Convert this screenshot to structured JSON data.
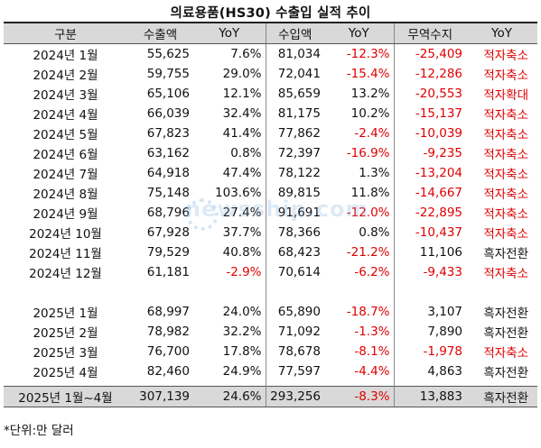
{
  "title": "의료용품(HS30) 수출입 실적 추이",
  "headers": [
    "구분",
    "수출액",
    "YoY",
    "수입액",
    "YoY",
    "무역수지",
    "YoY"
  ],
  "rows": [
    {
      "period": "2024년 1월",
      "export": "55,625",
      "export_yoy": "7.6%",
      "import": "81,034",
      "import_yoy": "-12.3%",
      "balance": "-25,409",
      "status": "적자축소"
    },
    {
      "period": "2024년 2월",
      "export": "59,755",
      "export_yoy": "29.0%",
      "import": "72,041",
      "import_yoy": "-15.4%",
      "balance": "-12,286",
      "status": "적자축소"
    },
    {
      "period": "2024년 3월",
      "export": "65,106",
      "export_yoy": "12.1%",
      "import": "85,659",
      "import_yoy": "13.2%",
      "balance": "-20,553",
      "status": "적자확대"
    },
    {
      "period": "2024년 4월",
      "export": "66,039",
      "export_yoy": "32.4%",
      "import": "81,175",
      "import_yoy": "10.2%",
      "balance": "-15,137",
      "status": "적자축소"
    },
    {
      "period": "2024년 5월",
      "export": "67,823",
      "export_yoy": "41.4%",
      "import": "77,862",
      "import_yoy": "-2.4%",
      "balance": "-10,039",
      "status": "적자축소"
    },
    {
      "period": "2024년 6월",
      "export": "63,162",
      "export_yoy": "0.8%",
      "import": "72,397",
      "import_yoy": "-16.9%",
      "balance": "-9,235",
      "status": "적자축소"
    },
    {
      "period": "2024년 7월",
      "export": "64,918",
      "export_yoy": "47.4%",
      "import": "78,122",
      "import_yoy": "1.3%",
      "balance": "-13,204",
      "status": "적자축소"
    },
    {
      "period": "2024년 8월",
      "export": "75,148",
      "export_yoy": "103.6%",
      "import": "89,815",
      "import_yoy": "11.8%",
      "balance": "-14,667",
      "status": "적자축소"
    },
    {
      "period": "2024년 9월",
      "export": "68,796",
      "export_yoy": "27.4%",
      "import": "91,691",
      "import_yoy": "-12.0%",
      "balance": "-22,895",
      "status": "적자축소"
    },
    {
      "period": "2024년 10월",
      "export": "67,928",
      "export_yoy": "37.7%",
      "import": "78,366",
      "import_yoy": "0.8%",
      "balance": "-10,437",
      "status": "적자축소"
    },
    {
      "period": "2024년 11월",
      "export": "79,529",
      "export_yoy": "40.8%",
      "import": "68,423",
      "import_yoy": "-21.2%",
      "balance": "11,106",
      "status": "흑자전환"
    },
    {
      "period": "2024년 12월",
      "export": "61,181",
      "export_yoy": "-2.9%",
      "import": "70,614",
      "import_yoy": "-6.2%",
      "balance": "-9,433",
      "status": "적자축소"
    },
    {
      "spacer": true
    },
    {
      "period": "2025년 1월",
      "export": "68,997",
      "export_yoy": "24.0%",
      "import": "65,890",
      "import_yoy": "-18.7%",
      "balance": "3,107",
      "status": "흑자전환"
    },
    {
      "period": "2025년 2월",
      "export": "78,982",
      "export_yoy": "32.2%",
      "import": "71,092",
      "import_yoy": "-1.3%",
      "balance": "7,890",
      "status": "흑자전환"
    },
    {
      "period": "2025년 3월",
      "export": "76,700",
      "export_yoy": "17.8%",
      "import": "78,678",
      "import_yoy": "-8.1%",
      "balance": "-1,978",
      "status": "적자축소"
    },
    {
      "period": "2025년 4월",
      "export": "82,460",
      "export_yoy": "24.9%",
      "import": "77,597",
      "import_yoy": "-4.4%",
      "balance": "4,863",
      "status": "흑자전환"
    }
  ],
  "total": {
    "period": "2025년 1월~4월",
    "export": "307,139",
    "export_yoy": "24.6%",
    "import": "293,256",
    "import_yoy": "-8.3%",
    "balance": "13,883",
    "status": "흑자전환"
  },
  "footnote": "*단위:만 달러",
  "watermark": "newsship.com",
  "colors": {
    "negative": "#e00000",
    "header_bg": "#d9d9d9"
  }
}
